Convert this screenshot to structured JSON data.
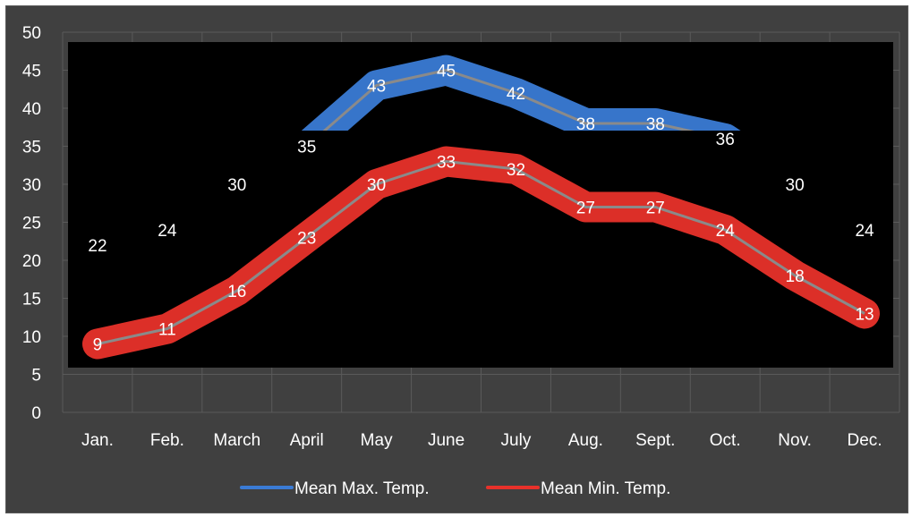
{
  "chart_data": {
    "type": "line",
    "categories": [
      "Jan.",
      "Feb.",
      "March",
      "April",
      "May",
      "June",
      "July",
      "Aug.",
      "Sept.",
      "Oct.",
      "Nov.",
      "Dec."
    ],
    "series": [
      {
        "name": "Mean Max. Temp.",
        "values": [
          22,
          24,
          30,
          35,
          43,
          45,
          42,
          38,
          38,
          36,
          30,
          24
        ],
        "color": "#3a7bd5"
      },
      {
        "name": "Mean Min. Temp.",
        "values": [
          9,
          11,
          16,
          23,
          30,
          33,
          32,
          27,
          27,
          24,
          18,
          13
        ],
        "color": "#e8312a"
      }
    ],
    "ylim": [
      0,
      50
    ],
    "yticks": [
      0,
      5,
      10,
      15,
      20,
      25,
      30,
      35,
      40,
      45,
      50
    ],
    "gridlines": true,
    "legend_position": "bottom",
    "colors": {
      "frame_background": "#404040",
      "overlay_background": "#000000",
      "gridline": "#5a5a5a",
      "text": "#ffffff",
      "series_line": "#8a8a8a"
    }
  }
}
